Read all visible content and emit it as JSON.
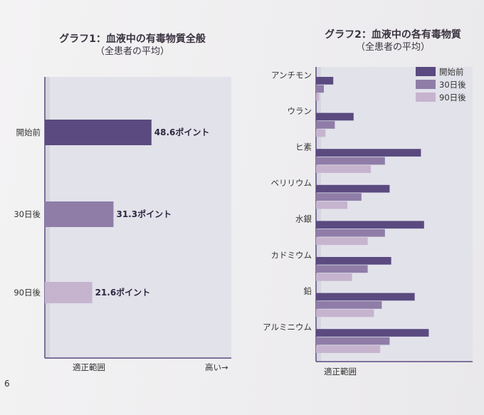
{
  "page": {
    "number": "6"
  },
  "colors": {
    "period_start": "#5a4a80",
    "period_30": "#8f7da8",
    "period_90": "#c6b4cf",
    "normal_range_band": "#d5d6de",
    "value_label": "#2e2640"
  },
  "chart_data": [
    {
      "type": "bar",
      "orientation": "horizontal",
      "title": "グラフ1：血液中の有毒物質全般",
      "subtitle": "（全患者の平均）",
      "categories": [
        "開始前",
        "30日後",
        "90日後"
      ],
      "values": [
        48.6,
        31.3,
        21.6
      ],
      "data_labels": [
        "48.6ポイント",
        "31.3ポイント",
        "21.6ポイント"
      ],
      "unit": "ポイント",
      "xlim": [
        0,
        85
      ],
      "normal_range_label": "適正範囲",
      "axis_note": "高い→",
      "grid": false
    },
    {
      "type": "bar",
      "orientation": "horizontal",
      "title": "グラフ2：血液中の各有毒物質",
      "subtitle": "（全患者の平均）",
      "categories": [
        "アンチモン",
        "ウラン",
        "ヒ素",
        "ベリリウム",
        "水銀",
        "カドミウム",
        "鉛",
        "アルミニウム"
      ],
      "series": [
        {
          "name": "開始前",
          "values": [
            11,
            24,
            67,
            47,
            69,
            48,
            63,
            72
          ]
        },
        {
          "name": "30日後",
          "values": [
            5,
            12,
            44,
            29,
            44,
            33,
            42,
            47
          ]
        },
        {
          "name": "90日後",
          "values": [
            2,
            6,
            35,
            20,
            33,
            23,
            37,
            41
          ]
        }
      ],
      "xlim": [
        0,
        100
      ],
      "normal_range_label": "適正範囲",
      "legend_position": "top-right",
      "grid": false
    }
  ]
}
